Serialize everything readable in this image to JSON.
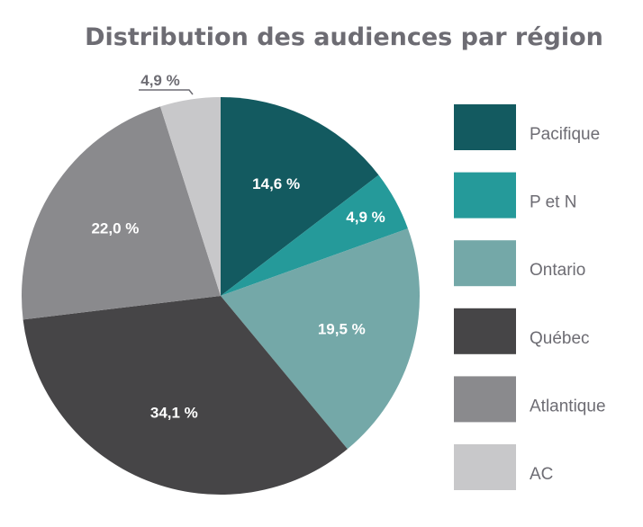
{
  "chart_data": {
    "type": "pie",
    "title": "Distribution des audiences par région",
    "start": "top",
    "direction": "clockwise",
    "legend_position": "right",
    "slices": [
      {
        "name": "Pacifique",
        "value": 14.6,
        "label": "14,6 %",
        "color": "#135a60"
      },
      {
        "name": "P et N",
        "value": 4.9,
        "label": "4,9 %",
        "color": "#259a9a"
      },
      {
        "name": "Ontario",
        "value": 19.5,
        "label": "19,5 %",
        "color": "#74a8a8"
      },
      {
        "name": "Québec",
        "value": 34.1,
        "label": "34,1 %",
        "color": "#464547"
      },
      {
        "name": "Atlantique",
        "value": 22.0,
        "label": "22,0 %",
        "color": "#8a8a8d"
      },
      {
        "name": "AC",
        "value": 4.9,
        "label": "4,9 %",
        "color": "#c8c8ca"
      }
    ]
  }
}
